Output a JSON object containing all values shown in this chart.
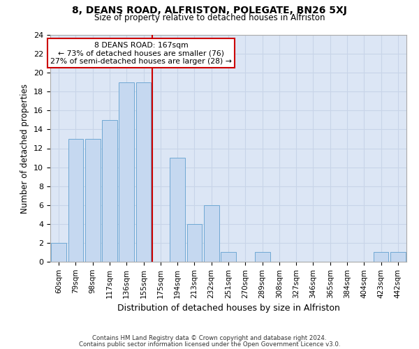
{
  "title": "8, DEANS ROAD, ALFRISTON, POLEGATE, BN26 5XJ",
  "subtitle": "Size of property relative to detached houses in Alfriston",
  "xlabel": "Distribution of detached houses by size in Alfriston",
  "ylabel": "Number of detached properties",
  "bar_labels": [
    "60sqm",
    "79sqm",
    "98sqm",
    "117sqm",
    "136sqm",
    "155sqm",
    "175sqm",
    "194sqm",
    "213sqm",
    "232sqm",
    "251sqm",
    "270sqm",
    "289sqm",
    "308sqm",
    "327sqm",
    "346sqm",
    "365sqm",
    "384sqm",
    "404sqm",
    "423sqm",
    "442sqm"
  ],
  "bar_values": [
    2,
    13,
    13,
    15,
    19,
    19,
    0,
    11,
    4,
    6,
    1,
    0,
    1,
    0,
    0,
    0,
    0,
    0,
    0,
    1,
    1
  ],
  "bar_color": "#c5d8f0",
  "bar_edge_color": "#6fa8d4",
  "ref_line_x": 5.5,
  "ref_line_label": "8 DEANS ROAD: 167sqm",
  "annotation_line1": "← 73% of detached houses are smaller (76)",
  "annotation_line2": "27% of semi-detached houses are larger (28) →",
  "annotation_box_color": "#ffffff",
  "annotation_box_edge_color": "#cc0000",
  "red_line_color": "#cc0000",
  "ylim": [
    0,
    24
  ],
  "yticks": [
    0,
    2,
    4,
    6,
    8,
    10,
    12,
    14,
    16,
    18,
    20,
    22,
    24
  ],
  "grid_color": "#c8d4e8",
  "bg_color": "#dce6f5",
  "footer_line1": "Contains HM Land Registry data © Crown copyright and database right 2024.",
  "footer_line2": "Contains public sector information licensed under the Open Government Licence v3.0."
}
